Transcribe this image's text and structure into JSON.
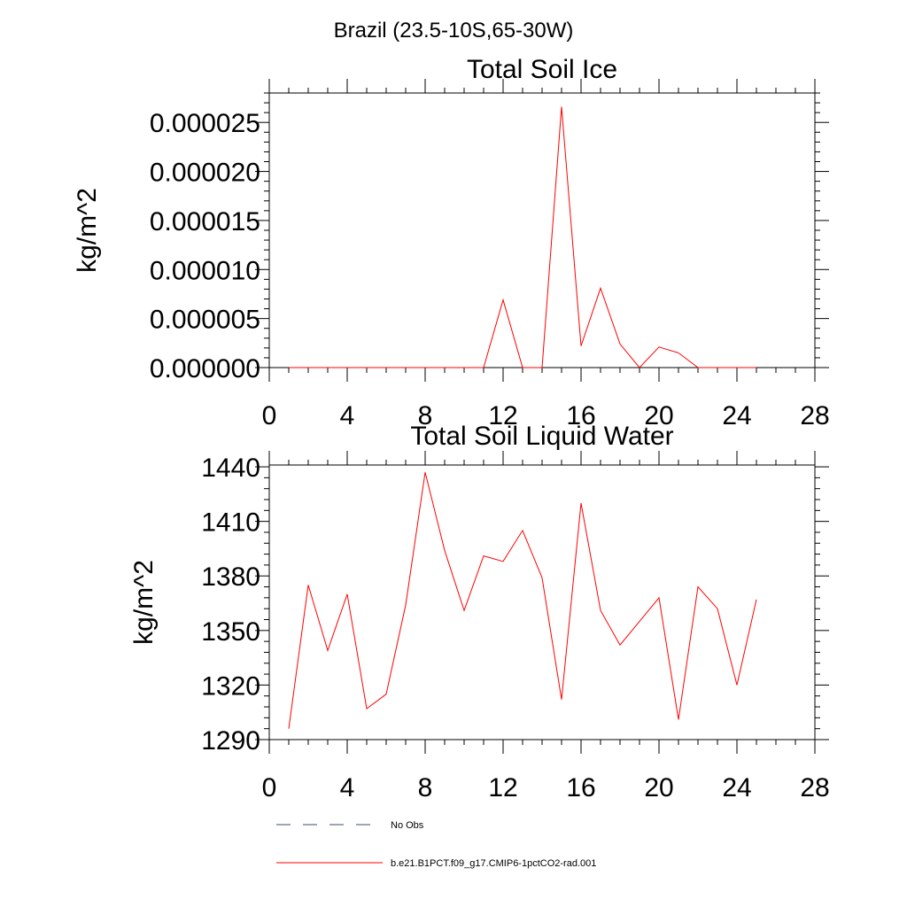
{
  "figure": {
    "region_title": "Brazil (23.5-10S,65-30W)"
  },
  "chart_data": [
    {
      "type": "line",
      "title": "Total Soil Ice",
      "xlabel": "",
      "ylabel": "kg/m^2",
      "xlim": [
        0,
        28
      ],
      "ylim": [
        0,
        2.8e-05
      ],
      "xticks": [
        0,
        4,
        8,
        12,
        16,
        20,
        24,
        28
      ],
      "xtick_labels": [
        "0",
        "4",
        "8",
        "12",
        "16",
        "20",
        "24",
        "28"
      ],
      "yticks": [
        0,
        5e-06,
        1e-05,
        1.5e-05,
        2e-05,
        2.5e-05
      ],
      "ytick_labels": [
        "0.000000",
        "0.000005",
        "0.000010",
        "0.000015",
        "0.000020",
        "0.000025"
      ],
      "grid": false,
      "series": [
        {
          "name": "b.e21.B1PCT.f09_g17.CMIP6-1pctCO2-rad.001",
          "color": "#ff0000",
          "x": [
            1,
            2,
            3,
            4,
            5,
            6,
            7,
            8,
            9,
            10,
            11,
            12,
            13,
            14,
            15,
            16,
            17,
            18,
            19,
            20,
            21,
            22,
            23,
            24,
            25
          ],
          "y": [
            0,
            0,
            0,
            0,
            0,
            0,
            0,
            0,
            0,
            0,
            0,
            6.9e-06,
            0,
            0,
            2.66e-05,
            2.2e-06,
            8.1e-06,
            2.4e-06,
            0,
            2.1e-06,
            1.5e-06,
            0,
            0,
            0,
            0
          ]
        }
      ]
    },
    {
      "type": "line",
      "title": "Total Soil Liquid Water",
      "xlabel": "",
      "ylabel": "kg/m^2",
      "xlim": [
        0,
        28
      ],
      "ylim": [
        1290,
        1441
      ],
      "xticks": [
        0,
        4,
        8,
        12,
        16,
        20,
        24,
        28
      ],
      "xtick_labels": [
        "0",
        "4",
        "8",
        "12",
        "16",
        "20",
        "24",
        "28"
      ],
      "yticks": [
        1290,
        1320,
        1350,
        1380,
        1410,
        1440
      ],
      "ytick_labels": [
        "1290",
        "1320",
        "1350",
        "1380",
        "1410",
        "1440"
      ],
      "grid": false,
      "series": [
        {
          "name": "b.e21.B1PCT.f09_g17.CMIP6-1pctCO2-rad.001",
          "color": "#ff0000",
          "x": [
            1,
            2,
            3,
            4,
            5,
            6,
            7,
            8,
            9,
            10,
            11,
            12,
            13,
            14,
            15,
            16,
            17,
            18,
            19,
            20,
            21,
            22,
            23,
            24,
            25
          ],
          "y": [
            1296,
            1375,
            1339,
            1370,
            1307,
            1315,
            1364,
            1437,
            1394,
            1361,
            1391,
            1388,
            1405,
            1379,
            1312,
            1420,
            1361,
            1342,
            1355,
            1368,
            1301,
            1374,
            1362,
            1320,
            1367
          ]
        }
      ]
    }
  ],
  "legend": {
    "placement": "bottom-left",
    "entries": [
      {
        "label": "No Obs",
        "color": "#3b4a6b",
        "style": "dashed"
      },
      {
        "label": "b.e21.B1PCT.f09_g17.CMIP6-1pctCO2-rad.001",
        "color": "#ff0000",
        "style": "solid"
      }
    ]
  }
}
